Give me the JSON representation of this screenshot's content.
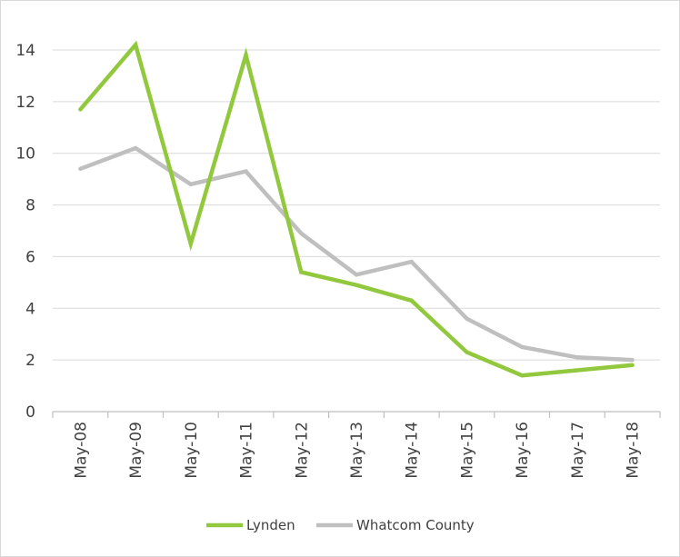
{
  "chart_data": {
    "type": "line",
    "title": "",
    "xlabel": "",
    "ylabel": "",
    "categories": [
      "May-08",
      "May-09",
      "May-10",
      "May-11",
      "May-12",
      "May-13",
      "May-14",
      "May-15",
      "May-16",
      "May-17",
      "May-18"
    ],
    "ylim": [
      0,
      14
    ],
    "yticks": [
      0,
      2,
      4,
      6,
      8,
      10,
      12,
      14
    ],
    "grid": true,
    "legend_position": "bottom",
    "series": [
      {
        "name": "Lynden",
        "color": "#92c83e",
        "values": [
          11.7,
          14.2,
          6.5,
          13.8,
          5.4,
          4.9,
          4.3,
          2.3,
          1.4,
          1.6,
          1.8
        ]
      },
      {
        "name": "Whatcom County",
        "color": "#bfbfbf",
        "values": [
          9.4,
          10.2,
          8.8,
          9.3,
          6.9,
          5.3,
          5.8,
          3.6,
          2.5,
          2.1,
          2.0
        ]
      }
    ]
  }
}
